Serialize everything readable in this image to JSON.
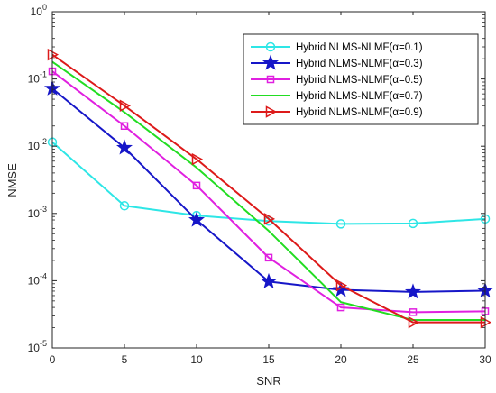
{
  "chart_data": {
    "type": "line",
    "xlabel": "SNR",
    "ylabel": "NMSE",
    "xlim": [
      0,
      30
    ],
    "ylim": [
      1e-05,
      1
    ],
    "yscale": "log",
    "x": [
      0,
      5,
      10,
      15,
      20,
      25,
      30
    ],
    "x_ticks": [
      "0",
      "5",
      "10",
      "15",
      "20",
      "25",
      "30"
    ],
    "y_ticks": [
      {
        "value": 1e-05,
        "base": "10",
        "exp": "-5"
      },
      {
        "value": 0.0001,
        "base": "10",
        "exp": "-4"
      },
      {
        "value": 0.001,
        "base": "10",
        "exp": "-3"
      },
      {
        "value": 0.01,
        "base": "10",
        "exp": "-2"
      },
      {
        "value": 0.1,
        "base": "10",
        "exp": "-1"
      },
      {
        "value": 1,
        "base": "10",
        "exp": "0"
      }
    ],
    "grid": false,
    "legend_position": "top-right",
    "series": [
      {
        "name": "Hybrid NLMS-NLMF(α=0.1)",
        "color": "#2ee6e6",
        "marker": "circle",
        "values": [
          0.0115,
          0.0013,
          0.00093,
          0.00077,
          0.0007,
          0.00071,
          0.00083
        ]
      },
      {
        "name": "Hybrid NLMS-NLMF(α=0.3)",
        "color": "#1616c8",
        "marker": "star",
        "values": [
          0.072,
          0.0095,
          0.0008,
          9.7e-05,
          7.3e-05,
          6.8e-05,
          7.1e-05
        ]
      },
      {
        "name": "Hybrid NLMS-NLMF(α=0.5)",
        "color": "#e020e0",
        "marker": "square",
        "values": [
          0.13,
          0.02,
          0.0026,
          0.00022,
          4e-05,
          3.4e-05,
          3.5e-05
        ]
      },
      {
        "name": "Hybrid NLMS-NLMF(α=0.7)",
        "color": "#22dd22",
        "marker": "none",
        "values": [
          0.18,
          0.032,
          0.0048,
          0.00055,
          4.8e-05,
          2.6e-05,
          2.6e-05
        ]
      },
      {
        "name": "Hybrid NLMS-NLMF(α=0.9)",
        "color": "#dd1a1a",
        "marker": "triangle-right",
        "values": [
          0.23,
          0.04,
          0.0064,
          0.00083,
          8.5e-05,
          2.4e-05,
          2.4e-05
        ]
      }
    ]
  }
}
